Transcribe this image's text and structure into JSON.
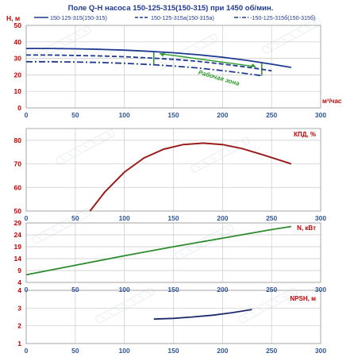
{
  "header": {
    "title": "Поле Q-H насоса 150-125-315(150-315) при 1450 об/мин."
  },
  "colors": {
    "grid": "#c9c9c9",
    "axis_text": "#2f5597",
    "label_red": "#c00000",
    "qh_line": "#1f3a93",
    "eff_line": "#9b1c1c",
    "power_line": "#2e8b2e",
    "npsh_line": "#1f2a6b",
    "work_zone": "#2e9e2e",
    "watermark": "#c8d2e0"
  },
  "chart_data": [
    {
      "name": "qh-panel",
      "type": "line",
      "title": "Поле Q-H насоса 150-125-315(150-315) при 1450 об/мин.",
      "ylabel": "H, м",
      "xlabel": "м³/час",
      "xlim": [
        0,
        300
      ],
      "ylim": [
        0,
        50
      ],
      "xticks": [
        0,
        50,
        100,
        150,
        200,
        250,
        300
      ],
      "yticks": [
        0,
        10,
        20,
        30,
        40,
        50
      ],
      "grid": true,
      "legend_position": "top",
      "series": [
        {
          "name": "150-125-315(150-315)",
          "style": "solid",
          "x": [
            0,
            25,
            50,
            75,
            100,
            125,
            150,
            175,
            200,
            225,
            250,
            270
          ],
          "y": [
            36.0,
            36.0,
            35.8,
            35.5,
            35.0,
            34.3,
            33.4,
            32.2,
            30.7,
            28.8,
            26.5,
            24.5
          ]
        },
        {
          "name": "150-125-315а(150-315а)",
          "style": "dashed",
          "x": [
            0,
            25,
            50,
            75,
            100,
            125,
            150,
            175,
            200,
            225,
            250
          ],
          "y": [
            32.0,
            32.0,
            31.8,
            31.5,
            31.0,
            30.3,
            29.4,
            28.2,
            26.6,
            24.7,
            22.5
          ]
        },
        {
          "name": "-150-125-315б(150-315б)",
          "style": "dashdot",
          "x": [
            0,
            25,
            50,
            75,
            100,
            125,
            150,
            175,
            200,
            225,
            240
          ],
          "y": [
            28.0,
            28.0,
            27.8,
            27.5,
            27.0,
            26.3,
            25.4,
            24.2,
            22.6,
            20.7,
            19.5
          ]
        }
      ],
      "annotation": "Рабочая зона",
      "work_zone_q": [
        130,
        240
      ]
    },
    {
      "name": "efficiency-panel",
      "type": "line",
      "ylabel": "КПД, %",
      "xlim": [
        0,
        300
      ],
      "ylim": [
        50,
        85
      ],
      "xticks": [
        0,
        50,
        100,
        150,
        200,
        250,
        300
      ],
      "yticks": [
        50,
        60,
        70,
        80
      ],
      "grid": true,
      "series": [
        {
          "name": "КПД, %",
          "x": [
            65,
            80,
            100,
            120,
            140,
            160,
            180,
            200,
            220,
            240,
            255,
            270
          ],
          "y": [
            50.0,
            58.0,
            66.5,
            72.5,
            76.2,
            78.2,
            78.8,
            78.2,
            76.5,
            74.0,
            72.0,
            70.0
          ]
        }
      ]
    },
    {
      "name": "power-panel",
      "type": "line",
      "ylabel": "N, кВт",
      "xlim": [
        0,
        300
      ],
      "ylim": [
        4,
        29
      ],
      "xticks": [
        0,
        50,
        100,
        150,
        200,
        250,
        300
      ],
      "yticks": [
        4,
        9,
        14,
        19,
        24,
        29
      ],
      "grid": true,
      "series": [
        {
          "name": "N, кВт",
          "x": [
            0,
            50,
            100,
            150,
            200,
            250,
            270
          ],
          "y": [
            7.2,
            11.2,
            15.2,
            19.0,
            22.6,
            26.2,
            27.5
          ]
        }
      ]
    },
    {
      "name": "npsh-panel",
      "type": "line",
      "ylabel": "NPSH, м",
      "xlim": [
        0,
        300
      ],
      "ylim": [
        1,
        4
      ],
      "xticks": [
        0,
        50,
        100,
        150,
        200,
        250,
        300
      ],
      "yticks": [
        1,
        2,
        3,
        4
      ],
      "grid": true,
      "series": [
        {
          "name": "NPSH, м",
          "x": [
            130,
            150,
            170,
            190,
            210,
            230
          ],
          "y": [
            2.38,
            2.42,
            2.5,
            2.6,
            2.74,
            2.92
          ]
        }
      ]
    }
  ]
}
